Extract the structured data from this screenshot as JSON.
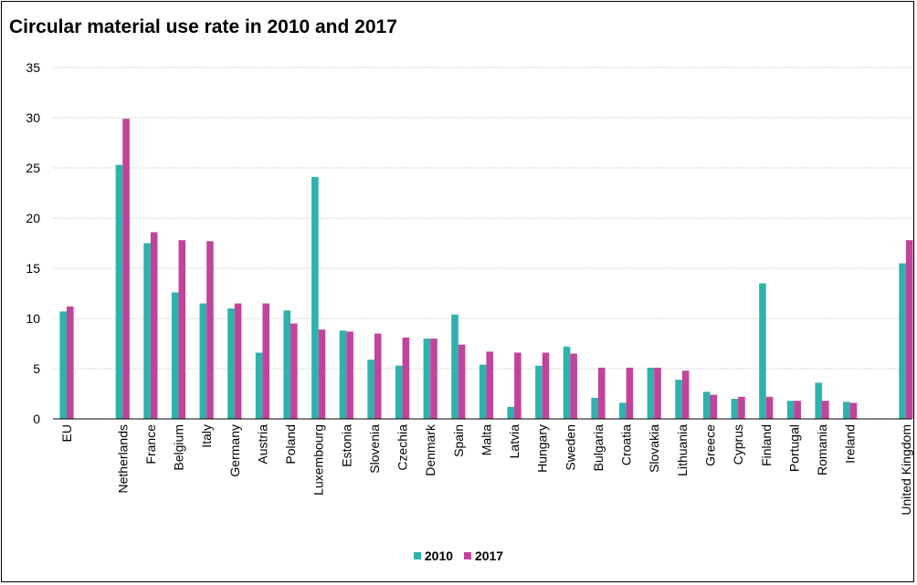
{
  "chart_data": {
    "type": "bar",
    "title": "Circular material use rate in 2010 and 2017",
    "xlabel": "",
    "ylabel": "",
    "ylim": [
      0,
      35
    ],
    "yticks": [
      0,
      5,
      10,
      15,
      20,
      25,
      30,
      35
    ],
    "grid": true,
    "legend_position": "bottom",
    "categories": [
      "EU",
      "Netherlands",
      "France",
      "Belgium",
      "Italy",
      "Germany",
      "Austria",
      "Poland",
      "Luxembourg",
      "Estonia",
      "Slovenia",
      "Czechia",
      "Denmark",
      "Spain",
      "Malta",
      "Latvia",
      "Hungary",
      "Sweden",
      "Bulgaria",
      "Croatia",
      "Slovakia",
      "Lithuania",
      "Greece",
      "Cyprus",
      "Finland",
      "Portugal",
      "Romania",
      "Ireland",
      "United Kingdom"
    ],
    "series": [
      {
        "name": "2010",
        "color": "#2eb2ad",
        "values": [
          10.7,
          25.3,
          17.5,
          12.6,
          11.5,
          11.0,
          6.6,
          10.8,
          24.1,
          8.8,
          5.9,
          5.3,
          8.0,
          10.4,
          5.4,
          1.2,
          5.3,
          7.2,
          2.1,
          1.6,
          5.1,
          3.9,
          2.7,
          2.0,
          13.5,
          1.8,
          3.6,
          1.7,
          15.5
        ]
      },
      {
        "name": "2017",
        "color": "#c1449b",
        "values": [
          11.2,
          29.9,
          18.6,
          17.8,
          17.7,
          11.5,
          11.5,
          9.5,
          8.9,
          8.7,
          8.5,
          8.1,
          8.0,
          7.4,
          6.7,
          6.6,
          6.6,
          6.5,
          5.1,
          5.1,
          5.1,
          4.8,
          2.4,
          2.2,
          2.2,
          1.8,
          1.8,
          1.6,
          17.8
        ]
      }
    ]
  }
}
